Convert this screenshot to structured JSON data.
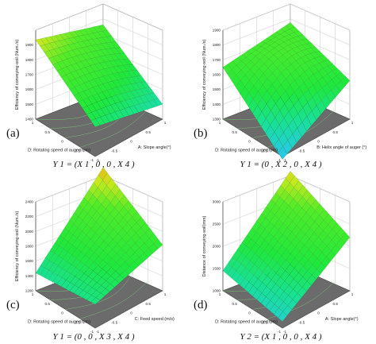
{
  "chart_data": [
    {
      "type": "surface3d",
      "panel": "(a)",
      "caption": "Y 1 = (X 1 , 0 , 0 , X 4 )",
      "zlabel": "Efficiency of conveying-soil (Num./s)",
      "xlabel": "A: Slope angle(°)",
      "ylabel": "D: Rotating speed of auger(rpm)",
      "xticks": [
        "-1",
        "-0.5",
        "0",
        "0.5",
        "1"
      ],
      "yticks": [
        "1",
        "0.5",
        "0",
        "-0.5",
        "-1"
      ],
      "zticks": [
        "1400",
        "1500",
        "1600",
        "1700",
        "1800",
        "1900"
      ],
      "zlim": [
        1400,
        2000
      ],
      "corners": {
        "front": 1600,
        "left": 1935,
        "right": 1500,
        "back": 1785
      },
      "curv": 100
    },
    {
      "type": "surface3d",
      "panel": "(b)",
      "caption": "Y 1 = (0 , X 2 , 0 , X 4 )",
      "zlabel": "Efficiency of conveying-soil (Num./s)",
      "xlabel": "B: Helix angle of auger (°)",
      "ylabel": "D: Rotating speed of auger(rpm)",
      "xticks": [
        "-1",
        "-0.5",
        "0",
        "0.5",
        "1"
      ],
      "yticks": [
        "1",
        "0.5",
        "0",
        "-0.5",
        "-1"
      ],
      "zticks": [
        "1300",
        "1400",
        "1500",
        "1600",
        "1700",
        "1800",
        "1900"
      ],
      "zlim": [
        1300,
        1900
      ],
      "corners": {
        "front": 1280,
        "left": 1650,
        "right": 1560,
        "back": 1700
      },
      "curv": 380
    },
    {
      "type": "surface3d",
      "panel": "(c)",
      "caption": "Y 1 = (0 , 0 , X 3 , X 4 )",
      "zlabel": "Efficiency of conveying-soil (Num./s)",
      "xlabel": "C: Feed speed (m/s)",
      "ylabel": "D: Rotating speed of auger(rpm)",
      "xticks": [
        "-1",
        "-0.5",
        "0",
        "0.5",
        "1"
      ],
      "yticks": [
        "1",
        "0.5",
        "0",
        "-0.5",
        "-1"
      ],
      "zticks": [
        "1200",
        "1400",
        "1600",
        "1800",
        "2000",
        "2200",
        "2400"
      ],
      "zlim": [
        1200,
        2400
      ],
      "corners": {
        "front": 1520,
        "left": 1440,
        "right": 1820,
        "back": 2360
      },
      "curv": 40
    },
    {
      "type": "surface3d",
      "panel": "(d)",
      "caption": "Y 2 = (X 1 , 0 , 0 , X 4 )",
      "zlabel": "Distance of conveying-soil(mm)",
      "xlabel": "A: Slope angle(°)",
      "ylabel": "D: Rotating speed of auger(rpm)",
      "xticks": [
        "-1",
        "-0.5",
        "0",
        "0.5",
        "1"
      ],
      "yticks": [
        "1",
        "0.5",
        "0",
        "-0.5",
        "-1"
      ],
      "zticks": [
        "1000",
        "1500",
        "2000",
        "2500",
        "3000"
      ],
      "zlim": [
        1000,
        3000
      ],
      "corners": {
        "front": 1150,
        "left": 1450,
        "right": 2200,
        "back": 2850
      },
      "curv": 80
    }
  ]
}
